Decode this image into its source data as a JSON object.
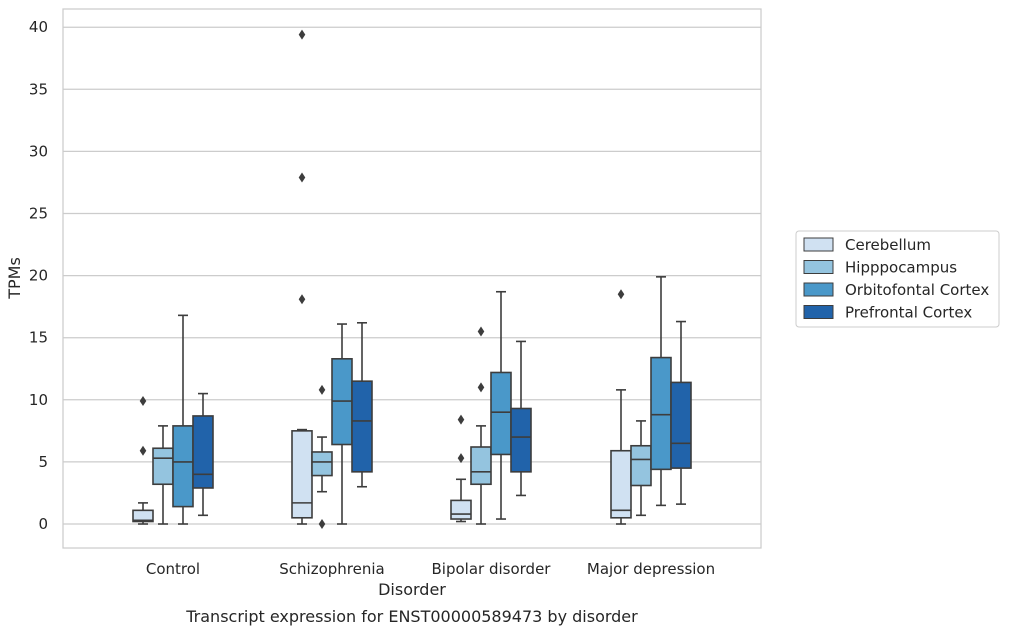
{
  "chart_data": {
    "type": "box",
    "xlabel": "Disorder",
    "ylabel": "TPMs",
    "caption": "Transcript expression for ENST00000589473 by disorder",
    "ylim": [
      -2,
      41.5
    ],
    "yticks": [
      0,
      5,
      10,
      15,
      20,
      25,
      30,
      35,
      40
    ],
    "grid": "horizontal",
    "legend_position": "right",
    "categories": [
      "Control",
      "Schizophrenia",
      "Bipolar disorder",
      "Major depression"
    ],
    "series": [
      {
        "name": "Cerebellum",
        "color": "#d0e1f2",
        "boxes": [
          {
            "min": 0.0,
            "q1": 0.2,
            "median": 0.3,
            "q3": 1.1,
            "max": 1.7,
            "outliers": [
              9.9,
              5.9
            ]
          },
          {
            "min": 0.0,
            "q1": 0.5,
            "median": 1.7,
            "q3": 7.5,
            "max": 7.6,
            "outliers": [
              39.4,
              27.9,
              18.1
            ]
          },
          {
            "min": 0.2,
            "q1": 0.4,
            "median": 0.8,
            "q3": 1.9,
            "max": 3.6,
            "outliers": [
              8.4,
              5.3
            ]
          },
          {
            "min": 0.0,
            "q1": 0.5,
            "median": 1.1,
            "q3": 5.9,
            "max": 10.8,
            "outliers": [
              18.5
            ]
          }
        ]
      },
      {
        "name": "Hipppocampus",
        "color": "#94c4df",
        "boxes": [
          {
            "min": 0.0,
            "q1": 3.2,
            "median": 5.3,
            "q3": 6.1,
            "max": 7.9,
            "outliers": []
          },
          {
            "min": 2.6,
            "q1": 3.9,
            "median": 5.0,
            "q3": 5.8,
            "max": 7.0,
            "outliers": [
              10.8,
              0.0
            ]
          },
          {
            "min": 0.0,
            "q1": 3.2,
            "median": 4.2,
            "q3": 6.2,
            "max": 7.9,
            "outliers": [
              15.5,
              11.0
            ]
          },
          {
            "min": 0.7,
            "q1": 3.1,
            "median": 5.2,
            "q3": 6.3,
            "max": 8.3,
            "outliers": []
          }
        ]
      },
      {
        "name": "Orbitofontal Cortex",
        "color": "#4a98c9",
        "boxes": [
          {
            "min": 0.0,
            "q1": 1.4,
            "median": 5.0,
            "q3": 7.9,
            "max": 16.8,
            "outliers": []
          },
          {
            "min": 0.0,
            "q1": 6.4,
            "median": 9.9,
            "q3": 13.3,
            "max": 16.1,
            "outliers": []
          },
          {
            "min": 0.4,
            "q1": 5.6,
            "median": 9.0,
            "q3": 12.2,
            "max": 18.7,
            "outliers": []
          },
          {
            "min": 1.5,
            "q1": 4.4,
            "median": 8.8,
            "q3": 13.4,
            "max": 19.9,
            "outliers": []
          }
        ]
      },
      {
        "name": "Prefrontal Cortex",
        "color": "#2163aa",
        "boxes": [
          {
            "min": 0.7,
            "q1": 2.9,
            "median": 4.0,
            "q3": 8.7,
            "max": 10.5,
            "outliers": []
          },
          {
            "min": 3.0,
            "q1": 4.2,
            "median": 8.3,
            "q3": 11.5,
            "max": 16.2,
            "outliers": []
          },
          {
            "min": 2.3,
            "q1": 4.2,
            "median": 7.0,
            "q3": 9.3,
            "max": 14.7,
            "outliers": []
          },
          {
            "min": 1.6,
            "q1": 4.5,
            "median": 6.5,
            "q3": 11.4,
            "max": 16.3,
            "outliers": []
          }
        ]
      }
    ]
  }
}
